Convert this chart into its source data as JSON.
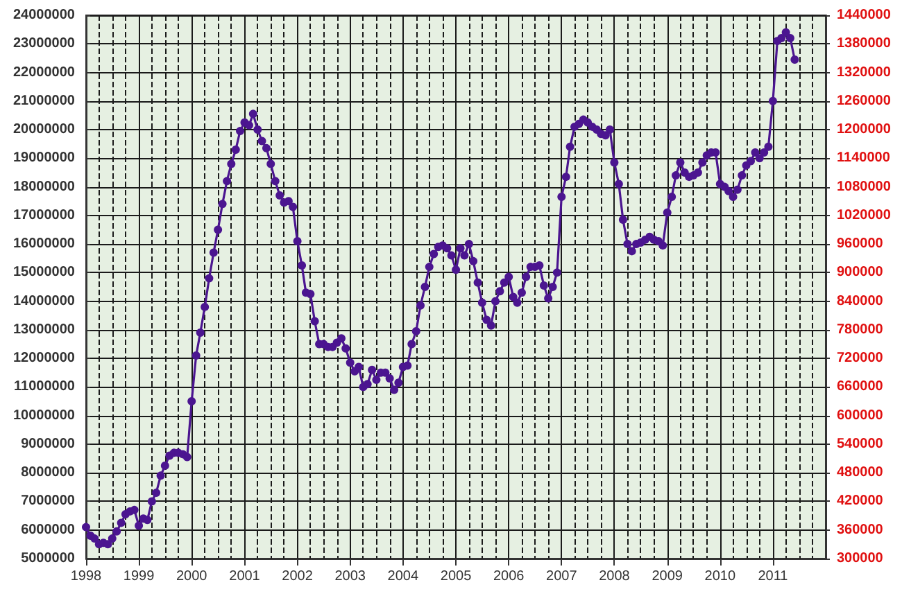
{
  "chart_data": {
    "type": "line",
    "grid": true,
    "marker": "circle",
    "line_style": "solid",
    "xlim": [
      "1998-01",
      "2012-01"
    ],
    "xticks": [
      "1998",
      "1999",
      "2000",
      "2001",
      "2002",
      "2003",
      "2004",
      "2005",
      "2006",
      "2007",
      "2008",
      "2009",
      "2010",
      "2011"
    ],
    "ylim": [
      5000000,
      24000000
    ],
    "yticks": [
      5000000,
      6000000,
      7000000,
      8000000,
      9000000,
      10000000,
      11000000,
      12000000,
      13000000,
      14000000,
      15000000,
      16000000,
      17000000,
      18000000,
      19000000,
      20000000,
      21000000,
      22000000,
      23000000,
      24000000
    ],
    "y2lim": [
      300000,
      1440000
    ],
    "y2ticks": [
      300000,
      360000,
      420000,
      480000,
      540000,
      600000,
      660000,
      720000,
      780000,
      840000,
      900000,
      960000,
      1020000,
      1080000,
      1140000,
      1200000,
      1260000,
      1320000,
      1380000,
      1440000
    ],
    "series": [
      {
        "color": "#4b1590",
        "x": [
          "1998-01",
          "1998-02",
          "1998-03",
          "1998-04",
          "1998-05",
          "1998-06",
          "1998-07",
          "1998-08",
          "1998-09",
          "1998-10",
          "1998-11",
          "1998-12",
          "1999-01",
          "1999-02",
          "1999-03",
          "1999-04",
          "1999-05",
          "1999-06",
          "1999-07",
          "1999-08",
          "1999-09",
          "1999-10",
          "1999-11",
          "1999-12",
          "2000-01",
          "2000-02",
          "2000-03",
          "2000-04",
          "2000-05",
          "2000-06",
          "2000-07",
          "2000-08",
          "2000-09",
          "2000-10",
          "2000-11",
          "2000-12",
          "2001-01",
          "2001-02",
          "2001-03",
          "2001-04",
          "2001-05",
          "2001-06",
          "2001-07",
          "2001-08",
          "2001-09",
          "2001-10",
          "2001-11",
          "2001-12",
          "2002-01",
          "2002-02",
          "2002-03",
          "2002-04",
          "2002-05",
          "2002-06",
          "2002-07",
          "2002-08",
          "2002-09",
          "2002-10",
          "2002-11",
          "2002-12",
          "2003-01",
          "2003-02",
          "2003-03",
          "2003-04",
          "2003-05",
          "2003-06",
          "2003-07",
          "2003-08",
          "2003-09",
          "2003-10",
          "2003-11",
          "2003-12",
          "2004-01",
          "2004-02",
          "2004-03",
          "2004-04",
          "2004-05",
          "2004-06",
          "2004-07",
          "2004-08",
          "2004-09",
          "2004-10",
          "2004-11",
          "2004-12",
          "2005-01",
          "2005-02",
          "2005-03",
          "2005-04",
          "2005-05",
          "2005-06",
          "2005-07",
          "2005-08",
          "2005-09",
          "2005-10",
          "2005-11",
          "2005-12",
          "2006-01",
          "2006-02",
          "2006-03",
          "2006-04",
          "2006-05",
          "2006-06",
          "2006-07",
          "2006-08",
          "2006-09",
          "2006-10",
          "2006-11",
          "2006-12",
          "2007-01",
          "2007-02",
          "2007-03",
          "2007-04",
          "2007-05",
          "2007-06",
          "2007-07",
          "2007-08",
          "2007-09",
          "2007-10",
          "2007-11",
          "2007-12",
          "2008-01",
          "2008-02",
          "2008-03",
          "2008-04",
          "2008-05",
          "2008-06",
          "2008-07",
          "2008-08",
          "2008-09",
          "2008-10",
          "2008-11",
          "2008-12",
          "2009-01",
          "2009-02",
          "2009-03",
          "2009-04",
          "2009-05",
          "2009-06",
          "2009-07",
          "2009-08",
          "2009-09",
          "2009-10",
          "2009-11",
          "2009-12",
          "2010-01",
          "2010-02",
          "2010-03",
          "2010-04",
          "2010-05",
          "2010-06",
          "2010-07",
          "2010-08",
          "2010-09",
          "2010-10",
          "2010-11",
          "2010-12",
          "2011-01",
          "2011-02",
          "2011-03",
          "2011-04",
          "2011-05",
          "2011-06"
        ],
        "values": [
          6100000,
          5800000,
          5700000,
          5500000,
          5550000,
          5500000,
          5700000,
          5950000,
          6250000,
          6550000,
          6650000,
          6700000,
          6150000,
          6400000,
          6350000,
          7000000,
          7300000,
          7900000,
          8250000,
          8600000,
          8700000,
          8700000,
          8650000,
          8550000,
          10500000,
          12100000,
          12900000,
          13800000,
          14800000,
          15700000,
          16500000,
          17400000,
          18200000,
          18800000,
          19300000,
          19950000,
          20250000,
          20150000,
          20550000,
          20000000,
          19600000,
          19350000,
          18800000,
          18200000,
          17700000,
          17450000,
          17500000,
          17300000,
          16100000,
          15250000,
          14300000,
          14250000,
          13300000,
          12500000,
          12500000,
          12400000,
          12400000,
          12550000,
          12700000,
          12350000,
          11850000,
          11550000,
          11700000,
          11000000,
          11100000,
          11600000,
          11250000,
          11500000,
          11500000,
          11300000,
          10900000,
          11150000,
          11700000,
          11750000,
          12500000,
          12950000,
          13850000,
          14500000,
          15200000,
          15650000,
          15900000,
          15950000,
          15850000,
          15600000,
          15100000,
          15850000,
          15600000,
          16000000,
          15400000,
          14650000,
          13950000,
          13350000,
          13150000,
          14000000,
          14350000,
          14650000,
          14850000,
          14150000,
          13950000,
          14300000,
          14850000,
          15200000,
          15200000,
          15250000,
          14550000,
          14100000,
          14500000,
          15000000,
          17650000,
          18350000,
          19400000,
          20100000,
          20200000,
          20350000,
          20250000,
          20100000,
          20000000,
          19850000,
          19800000,
          20000000,
          18850000,
          18100000,
          16850000,
          16000000,
          15750000,
          16000000,
          16050000,
          16150000,
          16250000,
          16150000,
          16100000,
          15950000,
          17100000,
          17650000,
          18400000,
          18850000,
          18500000,
          18350000,
          18400000,
          18500000,
          18850000,
          19100000,
          19200000,
          19200000,
          18100000,
          18000000,
          17850000,
          17650000,
          17900000,
          18400000,
          18750000,
          18900000,
          19200000,
          19000000,
          19200000,
          19400000,
          21000000,
          23100000,
          23200000,
          23400000,
          23200000,
          22450000
        ]
      }
    ]
  }
}
